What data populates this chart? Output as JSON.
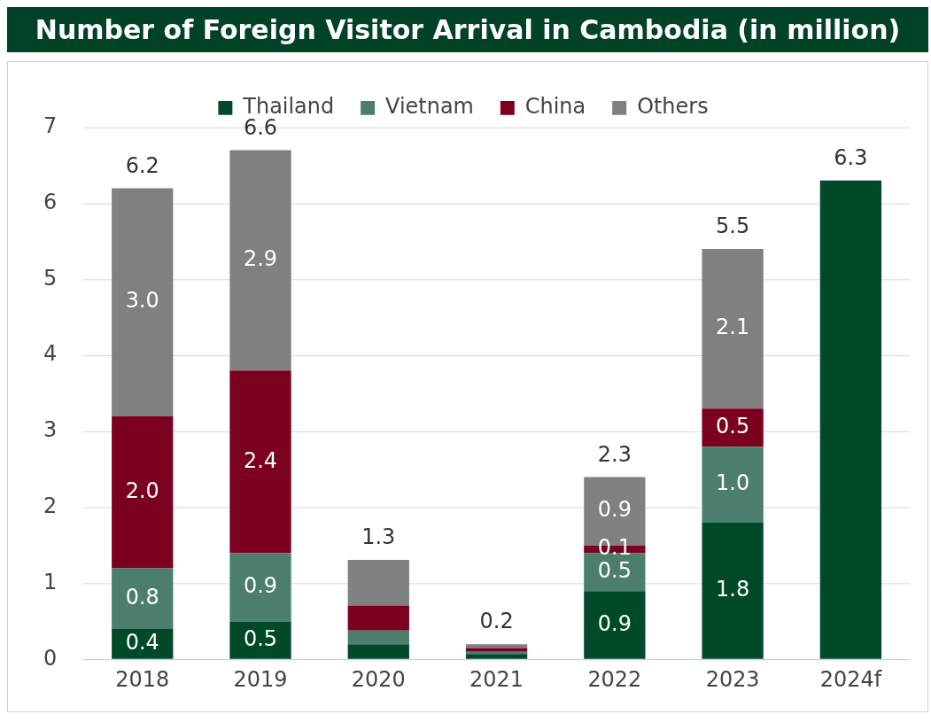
{
  "chart_data": {
    "type": "bar",
    "title": "Number of Foreign Visitor Arrival in Cambodia (in million)",
    "stacked": true,
    "categories": [
      "2018",
      "2019",
      "2020",
      "2021",
      "2022",
      "2023",
      "2024f"
    ],
    "series": [
      {
        "name": "Thailand",
        "color": "#004a2a",
        "values": [
          0.4,
          0.5,
          0.2,
          0.07,
          0.9,
          1.8,
          null
        ],
        "value_labels": [
          "0.4",
          "0.5",
          null,
          null,
          "0.9",
          "1.8",
          null
        ]
      },
      {
        "name": "Vietnam",
        "color": "#4b7f6b",
        "values": [
          0.8,
          0.9,
          0.18,
          0.03,
          0.5,
          1.0,
          null
        ],
        "value_labels": [
          "0.8",
          "0.9",
          null,
          null,
          "0.5",
          "1.0",
          null
        ]
      },
      {
        "name": "China",
        "color": "#7b0020",
        "values": [
          2.0,
          2.4,
          0.33,
          0.05,
          0.1,
          0.5,
          null
        ],
        "value_labels": [
          "2.0",
          "2.4",
          null,
          null,
          "0.1",
          "0.5",
          null
        ]
      },
      {
        "name": "Others",
        "color": "#808080",
        "values": [
          3.0,
          2.9,
          0.6,
          0.05,
          0.9,
          2.1,
          null
        ],
        "value_labels": [
          "3.0",
          "2.9",
          null,
          null,
          "0.9",
          "2.1",
          null
        ]
      },
      {
        "color": "#004a2a",
        "values": [
          null,
          null,
          null,
          null,
          null,
          null,
          6.3
        ]
      }
    ],
    "totals": [
      "6.2",
      "6.6",
      "1.3",
      "0.2",
      "2.3",
      "5.5",
      "6.3"
    ],
    "ylim": [
      0,
      7
    ],
    "yticks": [
      0,
      1,
      2,
      3,
      4,
      5,
      6,
      7
    ],
    "grid": "y",
    "legend": "top"
  }
}
